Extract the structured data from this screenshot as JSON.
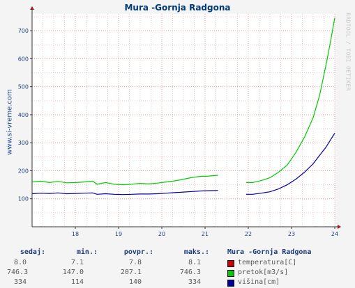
{
  "title": "Mura -Gornja Radgona",
  "site_label": "www.si-vreme.com",
  "rrd_label": "RRDTOOL / TOBI OETIKER",
  "stats": {
    "headers": [
      "sedaj:",
      "min.:",
      "povpr.:",
      "maks.:"
    ],
    "legend_title": "Mura -Gornja Radgona",
    "rows": [
      {
        "values": [
          "8.0",
          "7.1",
          "7.8",
          "8.1"
        ],
        "label": "temperatura[C]",
        "color": "#cc0000"
      },
      {
        "values": [
          "746.3",
          "147.0",
          "207.1",
          "746.3"
        ],
        "label": "pretok[m3/s]",
        "color": "#00cc00"
      },
      {
        "values": [
          "334",
          "114",
          "140",
          "334"
        ],
        "label": "višina[cm]",
        "color": "#0000aa"
      }
    ]
  },
  "chart_data": {
    "type": "line",
    "title": "Mura -Gornja Radgona",
    "xlim": [
      17,
      24
    ],
    "ylim": [
      0,
      760
    ],
    "x_ticks": [
      18,
      19,
      20,
      21,
      22,
      23,
      24
    ],
    "y_ticks": [
      100,
      200,
      300,
      400,
      500,
      600,
      700
    ],
    "grid": true,
    "series": [
      {
        "name": "pretok[m3/s]",
        "color": "#00cc00",
        "points": [
          [
            17.0,
            160
          ],
          [
            17.2,
            163
          ],
          [
            17.4,
            158
          ],
          [
            17.6,
            162
          ],
          [
            17.8,
            157
          ],
          [
            18.0,
            158
          ],
          [
            18.2,
            160
          ],
          [
            18.4,
            163
          ],
          [
            18.5,
            152
          ],
          [
            18.7,
            158
          ],
          [
            18.9,
            152
          ],
          [
            19.1,
            150
          ],
          [
            19.3,
            152
          ],
          [
            19.5,
            155
          ],
          [
            19.7,
            153
          ],
          [
            19.9,
            156
          ],
          [
            20.1,
            160
          ],
          [
            20.3,
            164
          ],
          [
            20.5,
            170
          ],
          [
            20.7,
            176
          ],
          [
            20.9,
            180
          ],
          [
            21.1,
            181
          ],
          [
            21.3,
            184
          ]
        ]
      },
      {
        "name": "pretok[m3/s]",
        "color": "#00cc00",
        "points": [
          [
            21.95,
            158
          ],
          [
            22.1,
            158
          ],
          [
            22.3,
            165
          ],
          [
            22.5,
            175
          ],
          [
            22.7,
            195
          ],
          [
            22.9,
            220
          ],
          [
            23.1,
            265
          ],
          [
            23.3,
            320
          ],
          [
            23.5,
            390
          ],
          [
            23.65,
            470
          ],
          [
            23.8,
            580
          ],
          [
            23.9,
            660
          ],
          [
            24.0,
            746
          ]
        ]
      },
      {
        "name": "višina[cm]",
        "color": "#0000aa",
        "points": [
          [
            17.0,
            118
          ],
          [
            17.2,
            120
          ],
          [
            17.4,
            119
          ],
          [
            17.6,
            121
          ],
          [
            17.8,
            118
          ],
          [
            18.0,
            119
          ],
          [
            18.2,
            120
          ],
          [
            18.4,
            121
          ],
          [
            18.5,
            116
          ],
          [
            18.7,
            118
          ],
          [
            18.9,
            116
          ],
          [
            19.1,
            115
          ],
          [
            19.3,
            116
          ],
          [
            19.5,
            117
          ],
          [
            19.7,
            117
          ],
          [
            19.9,
            118
          ],
          [
            20.1,
            120
          ],
          [
            20.3,
            122
          ],
          [
            20.5,
            124
          ],
          [
            20.7,
            126
          ],
          [
            20.9,
            128
          ],
          [
            21.1,
            129
          ],
          [
            21.3,
            130
          ]
        ]
      },
      {
        "name": "višina[cm]",
        "color": "#0000aa",
        "points": [
          [
            21.95,
            116
          ],
          [
            22.1,
            116
          ],
          [
            22.3,
            120
          ],
          [
            22.5,
            125
          ],
          [
            22.7,
            135
          ],
          [
            22.9,
            150
          ],
          [
            23.1,
            170
          ],
          [
            23.3,
            195
          ],
          [
            23.5,
            225
          ],
          [
            23.65,
            255
          ],
          [
            23.8,
            285
          ],
          [
            23.9,
            310
          ],
          [
            24.0,
            334
          ]
        ]
      }
    ]
  }
}
